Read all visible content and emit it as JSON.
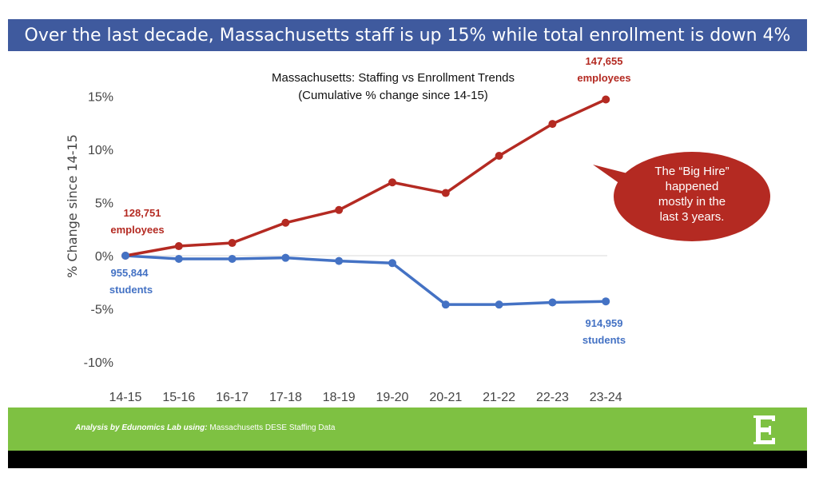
{
  "banner": {
    "title": "Over the last decade, Massachusetts staff is up 15% while total enrollment is down 4%"
  },
  "chart_data": {
    "type": "line",
    "title": "Massachusetts: Staffing vs Enrollment Trends",
    "subtitle": "(Cumulative % change since 14-15)",
    "xlabel": "",
    "ylabel": "% Change since 14-15",
    "categories": [
      "14-15",
      "15-16",
      "16-17",
      "17-18",
      "18-19",
      "19-20",
      "20-21",
      "21-22",
      "22-23",
      "23-24"
    ],
    "ylim": [
      -10,
      15
    ],
    "yticks": [
      15,
      10,
      5,
      0,
      -5,
      -10
    ],
    "ytick_labels": [
      "15%",
      "10%",
      "5%",
      "0%",
      "-5%",
      "-10%"
    ],
    "series": [
      {
        "name": "employees",
        "color": "#b42a22",
        "values": [
          0,
          0.9,
          1.2,
          3.1,
          4.3,
          6.9,
          5.9,
          9.4,
          12.4,
          14.7
        ]
      },
      {
        "name": "students",
        "color": "#4472c4",
        "values": [
          0,
          -0.3,
          -0.3,
          -0.2,
          -0.5,
          -0.7,
          -4.6,
          -4.6,
          -4.4,
          -4.3
        ]
      }
    ],
    "annotations": {
      "emp_start": {
        "value": "128,751",
        "unit": "employees"
      },
      "emp_end": {
        "value": "147,655",
        "unit": "employees"
      },
      "stu_start": {
        "value": "955,844",
        "unit": "students"
      },
      "stu_end": {
        "value": "914,959",
        "unit": "students"
      },
      "callout": [
        "The “Big Hire”",
        "happened",
        "mostly in the",
        "last 3 years."
      ]
    },
    "callout_color": "#b42a22"
  },
  "footer": {
    "source_italic": "Analysis by Edunomics Lab using:",
    "source_text": " Massachusetts DESE Staffing Data",
    "logo_letter": "E"
  }
}
